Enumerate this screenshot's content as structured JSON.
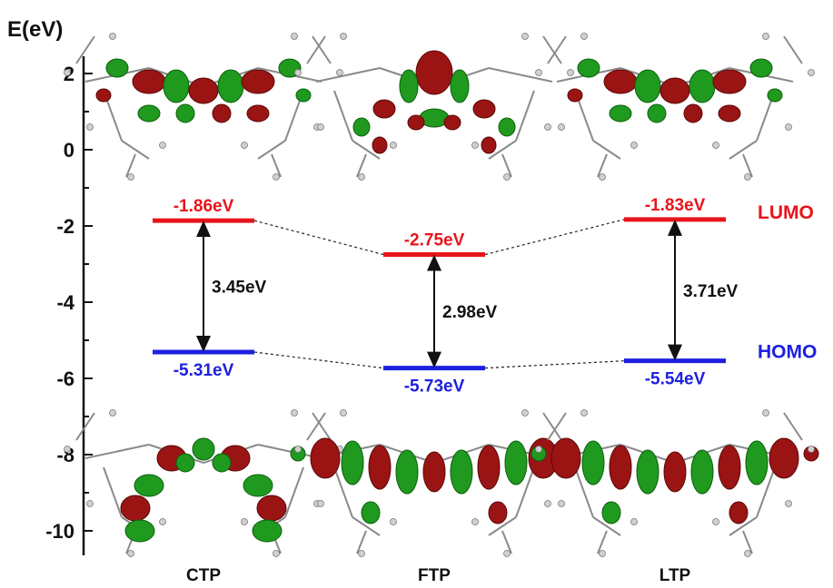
{
  "chart_data": {
    "type": "energy-level-diagram",
    "ylabel": "E(eV)",
    "ylim": [
      -10.6,
      2.6
    ],
    "y_ticks": [
      2,
      0,
      -2,
      -4,
      -6,
      -8,
      -10
    ],
    "categories": [
      "CTP",
      "FTP",
      "LTP"
    ],
    "series": [
      {
        "name": "LUMO",
        "color": "#e8141b",
        "values": [
          -1.86,
          -2.75,
          -1.83
        ],
        "labels": [
          "-1.86eV",
          "-2.75eV",
          "-1.83eV"
        ]
      },
      {
        "name": "HOMO",
        "color": "#1d20e0",
        "values": [
          -5.31,
          -5.73,
          -5.54
        ],
        "labels": [
          "-5.31eV",
          "-5.73eV",
          "-5.54eV"
        ]
      }
    ],
    "gaps": [
      {
        "category": "CTP",
        "value": 3.45,
        "label": "3.45eV"
      },
      {
        "category": "FTP",
        "value": 2.98,
        "label": "2.98eV"
      },
      {
        "category": "LTP",
        "value": 3.71,
        "label": "3.71eV"
      }
    ],
    "orbital_images": {
      "lumo_row": [
        "CTP LUMO orbital",
        "FTP LUMO orbital",
        "LTP LUMO orbital"
      ],
      "homo_row": [
        "CTP HOMO orbital",
        "FTP HOMO orbital",
        "LTP HOMO orbital"
      ]
    }
  }
}
